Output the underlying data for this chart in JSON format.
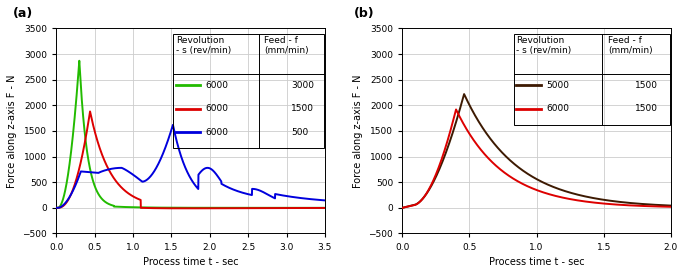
{
  "panel_a": {
    "label": "(a)",
    "xlim": [
      0,
      3.5
    ],
    "ylim": [
      -500,
      3500
    ],
    "xticks": [
      0,
      0.5,
      1,
      1.5,
      2,
      2.5,
      3,
      3.5
    ],
    "yticks": [
      -500,
      0,
      500,
      1000,
      1500,
      2000,
      2500,
      3000,
      3500
    ],
    "xlabel": "Process time t - sec",
    "ylabel": "Force along z-axis F - N",
    "rows": [
      {
        "color": "#22bb00",
        "revolution": "6000",
        "feed": "3000"
      },
      {
        "color": "#dd0000",
        "revolution": "6000",
        "feed": "1500"
      },
      {
        "color": "#0000dd",
        "revolution": "6000",
        "feed": "500"
      }
    ]
  },
  "panel_b": {
    "label": "(b)",
    "xlim": [
      0,
      2
    ],
    "ylim": [
      -500,
      3500
    ],
    "xticks": [
      0,
      0.5,
      1,
      1.5,
      2
    ],
    "yticks": [
      -500,
      0,
      500,
      1000,
      1500,
      2000,
      2500,
      3000,
      3500
    ],
    "xlabel": "Process time t - sec",
    "ylabel": "Force along z-axis F - N",
    "rows": [
      {
        "color": "#3d1a02",
        "revolution": "5000",
        "feed": "1500"
      },
      {
        "color": "#dd0000",
        "revolution": "6000",
        "feed": "1500"
      }
    ]
  },
  "background_color": "#ffffff",
  "grid_color": "#cccccc",
  "lw": 1.4,
  "font_size": 7.0,
  "label_fontsize": 9
}
